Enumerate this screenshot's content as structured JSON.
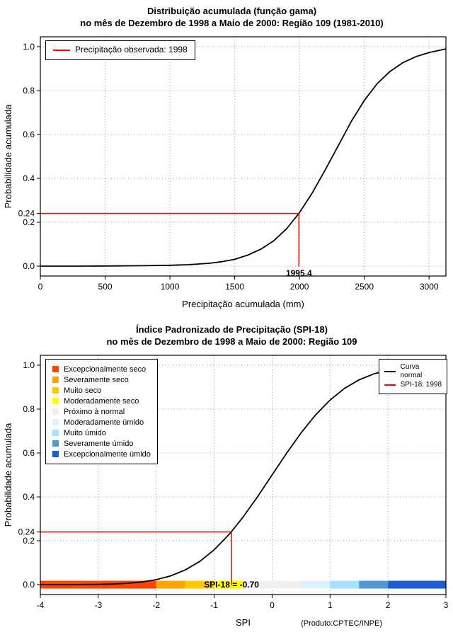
{
  "page": {
    "background": "#FFFFFF"
  },
  "chart_data": [
    {
      "type": "line",
      "title": "Distribuição acumulada (função gama)",
      "subtitle": "no mês de Dezembro de 1998 a Maio de 2000: Região 109 (1981-2010)",
      "xlabel": "Precipitação acumulada (mm)",
      "ylabel": "Probabilidade acumulada",
      "xlim": [
        0,
        3130
      ],
      "ylim": [
        0,
        1
      ],
      "xticks": [
        0,
        500,
        1000,
        1500,
        2000,
        2500,
        3000
      ],
      "yticks": [
        "0.0",
        "0.2",
        "0.4",
        "0.6",
        "0.8",
        "1.0"
      ],
      "grid": true,
      "legend": [
        {
          "label": "Precipitação observada: 1998",
          "color": "#FF0000"
        }
      ],
      "annotation": {
        "x": 1995.4,
        "y": 0.24,
        "x_label": "1995.4",
        "y_label": "0.24",
        "color": "#FF0000"
      },
      "series": [
        {
          "name": "Distribuição acumulada (função gama)",
          "color": "#000000",
          "x": [
            0,
            300,
            600,
            800,
            1000,
            1150,
            1300,
            1400,
            1500,
            1600,
            1700,
            1800,
            1900,
            1995.4,
            2100,
            2200,
            2300,
            2400,
            2500,
            2600,
            2700,
            2800,
            2900,
            3000,
            3130
          ],
          "y": [
            0,
            0,
            0.001,
            0.002,
            0.004,
            0.007,
            0.013,
            0.02,
            0.031,
            0.05,
            0.077,
            0.115,
            0.17,
            0.24,
            0.335,
            0.44,
            0.55,
            0.66,
            0.755,
            0.832,
            0.888,
            0.928,
            0.955,
            0.973,
            0.99
          ]
        }
      ]
    },
    {
      "type": "line",
      "title": "Índice Padronizado de Precipitação (SPI-18)",
      "subtitle": "no mês de Dezembro de 1998 a Maio de 2000: Região 109",
      "xlabel": "SPI",
      "ylabel": "Probabilidade acumulada",
      "footnote": "(Produto:CPTEC/INPE)",
      "xlim": [
        -4,
        3
      ],
      "ylim": [
        0,
        1
      ],
      "xticks": [
        -4,
        -3,
        -2,
        -1,
        0,
        1,
        2,
        3
      ],
      "yticks": [
        "0.0",
        "0.2",
        "0.4",
        "0.6",
        "0.8",
        "1.0"
      ],
      "grid": true,
      "legend_lines": [
        {
          "label": "Curva\nnormal",
          "color": "#000000"
        },
        {
          "label": "SPI-18: 1998",
          "color": "#FF0000"
        }
      ],
      "annotation": {
        "x": -0.7,
        "y": 0.24,
        "y_label": "0.24",
        "bar_label": "SPI-18 = -0.70",
        "color": "#FF0000"
      },
      "category_bar": {
        "y": 0,
        "segments": [
          {
            "range": [
              -4,
              -2
            ],
            "color": "#FF4300",
            "label": "Excepcionalmente seco"
          },
          {
            "range": [
              -2,
              -1.5
            ],
            "color": "#FFA500",
            "label": "Severamente seco"
          },
          {
            "range": [
              -1.5,
              -1
            ],
            "color": "#FFC800",
            "label": "Muito seco"
          },
          {
            "range": [
              -1,
              -0.5
            ],
            "color": "#FFFF00",
            "label": "Moderadamente seco"
          },
          {
            "range": [
              -0.5,
              0.5
            ],
            "color": "#F0F0F0",
            "label": "Próximo à normal"
          },
          {
            "range": [
              0.5,
              1
            ],
            "color": "#DCF2FF",
            "label": "Moderadamente úmido"
          },
          {
            "range": [
              1,
              1.5
            ],
            "color": "#A8E0FF",
            "label": "Muito úmido"
          },
          {
            "range": [
              1.5,
              2
            ],
            "color": "#4F9AD4",
            "label": "Severamente úmido"
          },
          {
            "range": [
              2,
              3
            ],
            "color": "#1C5BD0",
            "label": "Excepcionalmente úmido"
          }
        ]
      },
      "series": [
        {
          "name": "Curva normal",
          "color": "#000000",
          "x": [
            -4,
            -3.5,
            -3,
            -2.75,
            -2.5,
            -2.25,
            -2,
            -1.75,
            -1.5,
            -1.25,
            -1,
            -0.75,
            -0.7,
            -0.5,
            -0.25,
            0,
            0.25,
            0.5,
            0.75,
            1,
            1.25,
            1.5,
            1.75,
            2,
            2.25,
            2.5,
            2.75,
            3
          ],
          "y": [
            0.0,
            0.0002,
            0.0013,
            0.003,
            0.0062,
            0.0122,
            0.0228,
            0.0401,
            0.0668,
            0.1056,
            0.1587,
            0.2266,
            0.242,
            0.3085,
            0.4013,
            0.5,
            0.5987,
            0.6915,
            0.7734,
            0.8413,
            0.8944,
            0.9332,
            0.9599,
            0.9772,
            0.9878,
            0.9938,
            0.997,
            0.9987
          ]
        }
      ]
    }
  ]
}
